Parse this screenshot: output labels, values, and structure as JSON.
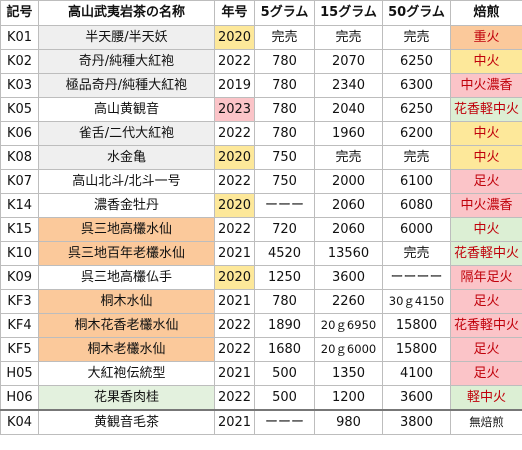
{
  "headers": [
    "記号",
    "高山武夷岩茶の名称",
    "年号",
    "5グラム",
    "15グラム",
    "50グラム",
    "焙煎"
  ],
  "rows": [
    {
      "code": "K01",
      "name": "半天腰/半天妖",
      "year": "2020",
      "g5": "完売",
      "g15": "完売",
      "g50": "完売",
      "roast": "重火"
    },
    {
      "code": "K02",
      "name": "奇丹/純種大紅袍",
      "year": "2022",
      "g5": "780",
      "g15": "2070",
      "g50": "6250",
      "roast": "中火"
    },
    {
      "code": "K03",
      "name": "極品奇丹/純種大紅袍",
      "year": "2019",
      "g5": "780",
      "g15": "2340",
      "g50": "6300",
      "roast": "中火濃香"
    },
    {
      "code": "K05",
      "name": "高山黄観音",
      "year": "2023",
      "g5": "780",
      "g15": "2040",
      "g50": "6250",
      "roast": "花香軽中火"
    },
    {
      "code": "K06",
      "name": "雀舌/二代大紅袍",
      "year": "2022",
      "g5": "780",
      "g15": "1960",
      "g50": "6200",
      "roast": "中火"
    },
    {
      "code": "K08",
      "name": "水金亀",
      "year": "2020",
      "g5": "750",
      "g15": "完売",
      "g50": "完売",
      "roast": "中火"
    },
    {
      "code": "K07",
      "name": "高山北斗/北斗一号",
      "year": "2022",
      "g5": "750",
      "g15": "2000",
      "g50": "6100",
      "roast": "足火"
    },
    {
      "code": "K14",
      "name": "濃香金牡丹",
      "year": "2020",
      "g5": "ーーー",
      "g15": "2060",
      "g50": "6080",
      "roast": "中火濃香"
    },
    {
      "code": "K15",
      "name": "呉三地高欉水仙",
      "year": "2022",
      "g5": "720",
      "g15": "2060",
      "g50": "6000",
      "roast": "中火"
    },
    {
      "code": "K10",
      "name": "呉三地百年老欉水仙",
      "year": "2021",
      "g5": "4520",
      "g15": "13560",
      "g50": "完売",
      "roast": "花香軽中火"
    },
    {
      "code": "K09",
      "name": "呉三地高欉仏手",
      "year": "2020",
      "g5": "1250",
      "g15": "3600",
      "g50": "ーーーー",
      "roast": "隔年足火"
    },
    {
      "code": "KF3",
      "name": "桐木水仙",
      "year": "2021",
      "g5": "780",
      "g15": "2260",
      "g50": "30ｇ4150",
      "roast": "足火"
    },
    {
      "code": "KF4",
      "name": "桐木花香老欉水仙",
      "year": "2022",
      "g5": "1890",
      "g15": "20ｇ6950",
      "g50": "15800",
      "roast": "花香軽中火"
    },
    {
      "code": "KF5",
      "name": "桐木老欉水仙",
      "year": "2022",
      "g5": "1680",
      "g15": "20ｇ6000",
      "g50": "15800",
      "roast": "足火"
    },
    {
      "code": "H05",
      "name": "大紅袍伝統型",
      "year": "2021",
      "g5": "500",
      "g15": "1350",
      "g50": "4100",
      "roast": "足火"
    },
    {
      "code": "H06",
      "name": "花果香肉桂",
      "year": "2022",
      "g5": "500",
      "g15": "1200",
      "g50": "3600",
      "roast": "軽中火"
    },
    {
      "code": "K04",
      "name": "黄観音毛茶",
      "year": "2021",
      "g5": "ーーー",
      "g15": "980",
      "g50": "3800",
      "roast": "無焙煎"
    }
  ],
  "colors": {
    "grey": "#efefef",
    "orange": "#fbc99b",
    "yellow": "#fde89a",
    "pink": "#fbc4c8",
    "green": "#dcefd4",
    "text_red": "#c0000a"
  }
}
